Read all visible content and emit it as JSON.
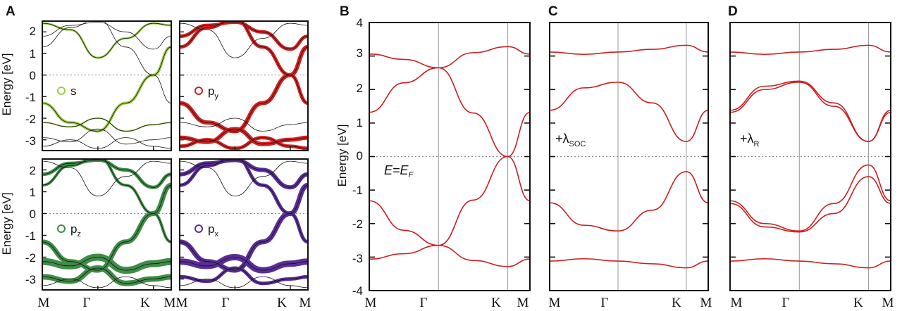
{
  "colors": {
    "red": "#cc1f1f",
    "s": "#9ccd4a",
    "pz": "#3f8d47",
    "px": "#5a2e98",
    "py": "#d42020",
    "black": "#111111"
  },
  "panel_labels": {
    "a": "A",
    "b": "B",
    "c": "C",
    "d": "D"
  },
  "axis": {
    "ylabel": "Energy [eV]"
  },
  "kpoints": [
    "M",
    "Γ",
    "K",
    "M"
  ],
  "annotations": {
    "b": {
      "main": "E=E",
      "sub": "F"
    },
    "c": {
      "main": "+λ",
      "sub": "SOC"
    },
    "d": {
      "main": "+λ",
      "sub": "R"
    }
  },
  "orbitals": [
    {
      "main": "s",
      "sub": "",
      "color": "#9ccd4a"
    },
    {
      "main": "p",
      "sub": "y",
      "color": "#d42020"
    },
    {
      "main": "p",
      "sub": "z",
      "color": "#3f8d47"
    },
    {
      "main": "p",
      "sub": "x",
      "color": "#5a2e98"
    }
  ],
  "chart_data": [
    {
      "type": "line",
      "panel": "A",
      "description_of_axes": "k-path M-Γ-K-M vs energy",
      "x_ticks": [
        "M",
        "Γ",
        "K",
        "M"
      ],
      "ylabel": "Energy [eV]",
      "ylim": [
        -3.5,
        2.5
      ],
      "y_ticks": [
        -3,
        -2,
        -1,
        0,
        1,
        2
      ],
      "subpanels": [
        "s",
        "py",
        "pz",
        "px"
      ]
    },
    {
      "type": "line",
      "panel": "B",
      "x_ticks": [
        "M",
        "Γ",
        "K",
        "M"
      ],
      "ylabel": "Energy [eV]",
      "ylim": [
        -4,
        4
      ],
      "y_ticks": [
        -4,
        -3,
        -2,
        -1,
        0,
        1,
        2,
        3,
        4
      ],
      "series": [
        {
          "values": [
            [
              0,
              3.06
            ],
            [
              0.25,
              2.9
            ],
            [
              0.5,
              2.65
            ],
            [
              0.75,
              3.1
            ],
            [
              1.0,
              3.28
            ],
            [
              1.16,
              3.06
            ]
          ]
        },
        {
          "values": [
            [
              0,
              1.32
            ],
            [
              0.25,
              2.2
            ],
            [
              0.5,
              2.65
            ],
            [
              0.75,
              1.3
            ],
            [
              1.0,
              0.0
            ],
            [
              1.16,
              -1.32
            ]
          ]
        },
        {
          "values": [
            [
              0,
              -1.32
            ],
            [
              0.25,
              -2.2
            ],
            [
              0.5,
              -2.65
            ],
            [
              0.75,
              -1.3
            ],
            [
              1.0,
              0.0
            ],
            [
              1.16,
              1.32
            ]
          ]
        },
        {
          "values": [
            [
              0,
              -3.06
            ],
            [
              0.25,
              -2.9
            ],
            [
              0.5,
              -2.65
            ],
            [
              0.75,
              -3.1
            ],
            [
              1.0,
              -3.28
            ],
            [
              1.16,
              -3.06
            ]
          ]
        }
      ]
    },
    {
      "type": "line",
      "panel": "C",
      "x_ticks": [
        "M",
        "Γ",
        "K",
        "M"
      ],
      "ylim": [
        -4,
        4
      ],
      "series": [
        {
          "values": [
            [
              0,
              3.12
            ],
            [
              0.25,
              3.05
            ],
            [
              0.5,
              3.12
            ],
            [
              0.75,
              3.2
            ],
            [
              1.0,
              3.32
            ],
            [
              1.16,
              3.12
            ]
          ]
        },
        {
          "values": [
            [
              0,
              1.38
            ],
            [
              0.25,
              2.05
            ],
            [
              0.5,
              2.22
            ],
            [
              0.75,
              1.6
            ],
            [
              1.0,
              0.45
            ],
            [
              1.16,
              1.38
            ]
          ]
        },
        {
          "values": [
            [
              0,
              -1.38
            ],
            [
              0.25,
              -2.05
            ],
            [
              0.5,
              -2.22
            ],
            [
              0.75,
              -1.6
            ],
            [
              1.0,
              -0.45
            ],
            [
              1.16,
              -1.38
            ]
          ]
        },
        {
          "values": [
            [
              0,
              -3.12
            ],
            [
              0.25,
              -3.05
            ],
            [
              0.5,
              -3.12
            ],
            [
              0.75,
              -3.2
            ],
            [
              1.0,
              -3.32
            ],
            [
              1.16,
              -3.12
            ]
          ]
        }
      ]
    },
    {
      "type": "line",
      "panel": "D",
      "x_ticks": [
        "M",
        "Γ",
        "K",
        "M"
      ],
      "ylim": [
        -4,
        4
      ],
      "series": [
        {
          "values": [
            [
              0,
              3.12
            ],
            [
              0.25,
              3.05
            ],
            [
              0.5,
              3.12
            ],
            [
              0.75,
              3.2
            ],
            [
              1.0,
              3.32
            ],
            [
              1.16,
              3.12
            ]
          ]
        },
        {
          "values": [
            [
              0,
              1.38
            ],
            [
              0.25,
              2.1
            ],
            [
              0.5,
              2.25
            ],
            [
              0.75,
              1.6
            ],
            [
              1.0,
              0.45
            ],
            [
              1.16,
              1.38
            ]
          ]
        },
        {
          "values": [
            [
              0,
              1.32
            ],
            [
              0.25,
              2.0
            ],
            [
              0.5,
              2.22
            ],
            [
              0.75,
              1.5
            ],
            [
              1.0,
              0.45
            ],
            [
              1.16,
              1.32
            ]
          ]
        },
        {
          "values": [
            [
              0,
              -1.32
            ],
            [
              0.25,
              -2.0
            ],
            [
              0.5,
              -2.22
            ],
            [
              0.75,
              -1.4
            ],
            [
              1.0,
              -0.25
            ],
            [
              1.16,
              -1.32
            ]
          ]
        },
        {
          "values": [
            [
              0,
              -1.4
            ],
            [
              0.25,
              -2.1
            ],
            [
              0.5,
              -2.25
            ],
            [
              0.75,
              -1.7
            ],
            [
              1.0,
              -0.6
            ],
            [
              1.16,
              -1.4
            ]
          ]
        },
        {
          "values": [
            [
              0,
              -3.12
            ],
            [
              0.25,
              -3.05
            ],
            [
              0.5,
              -3.12
            ],
            [
              0.75,
              -3.2
            ],
            [
              1.0,
              -3.32
            ],
            [
              1.16,
              -3.12
            ]
          ]
        }
      ]
    }
  ]
}
